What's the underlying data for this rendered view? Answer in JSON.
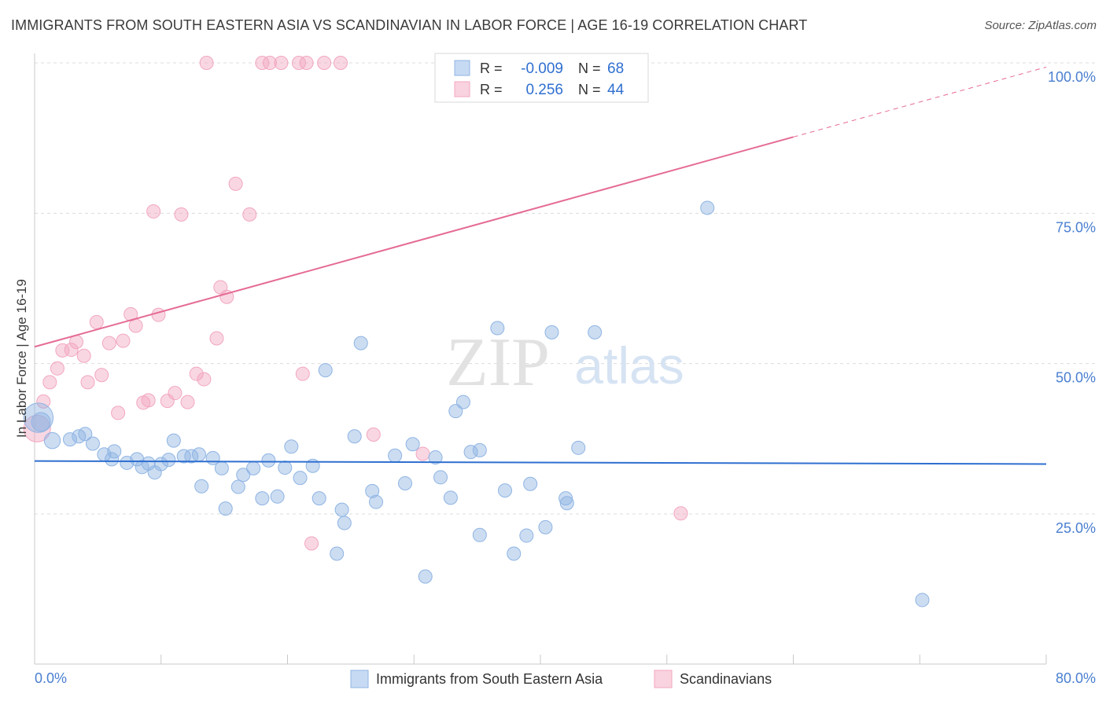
{
  "header": {
    "title": "IMMIGRANTS FROM SOUTH EASTERN ASIA VS SCANDINAVIAN IN LABOR FORCE | AGE 16-19 CORRELATION CHART",
    "source": "Source: ZipAtlas.com"
  },
  "watermark": {
    "zip": "ZIP",
    "atlas": "atlas"
  },
  "colors": {
    "blue": "#8fb4e3",
    "blue_line": "#2f6fd0",
    "pink": "#f2a7bf",
    "pink_line": "#e56b94",
    "axis_label": "#4a7fd0",
    "grid": "#dcdcdc"
  },
  "stats_box": {
    "rows": [
      {
        "r_label": "R =",
        "r_value": "-0.009",
        "n_label": "N =",
        "n_value": "68"
      },
      {
        "r_label": "R =",
        "r_value": "0.256",
        "n_label": "N =",
        "n_value": "44"
      }
    ]
  },
  "legend": {
    "items": [
      {
        "label": "Immigrants from South Eastern Asia"
      },
      {
        "label": "Scandinavians"
      }
    ]
  },
  "chart_data": {
    "type": "scatter",
    "title": "IMMIGRANTS FROM SOUTH EASTERN ASIA VS SCANDINAVIAN IN LABOR FORCE | AGE 16-19 CORRELATION CHART",
    "xlabel": "",
    "ylabel": "In Labor Force | Age 16-19",
    "xlim": [
      0,
      80
    ],
    "ylim": [
      3,
      105
    ],
    "x_tick_labels": [
      "0.0%",
      "80.0%"
    ],
    "y_ticks": [
      25,
      50,
      75,
      100
    ],
    "y_tick_labels": [
      "25.0%",
      "50.0%",
      "75.0%",
      "100.0%"
    ],
    "series": [
      {
        "name": "Immigrants from South Eastern Asia",
        "color": "#8fb4e3",
        "trend": {
          "x": [
            0,
            80
          ],
          "y": [
            33.8,
            33.3
          ],
          "dashed_after": null
        },
        "points": [
          [
            0.3,
            41.0,
            2.2
          ],
          [
            0.5,
            40.3,
            1.4
          ],
          [
            1.4,
            37.2,
            1.2
          ],
          [
            3.5,
            37.9,
            1.0
          ],
          [
            4.0,
            38.3,
            1.0
          ],
          [
            2.8,
            37.4,
            1.0
          ],
          [
            4.6,
            36.7,
            1.0
          ],
          [
            5.5,
            34.9,
            1.0
          ],
          [
            6.3,
            35.4,
            1.0
          ],
          [
            6.1,
            34.1,
            1.0
          ],
          [
            7.3,
            33.5,
            1.0
          ],
          [
            8.1,
            34.1,
            1.0
          ],
          [
            9.0,
            33.4,
            1.0
          ],
          [
            8.5,
            32.8,
            1.0
          ],
          [
            10.0,
            33.3,
            1.0
          ],
          [
            10.6,
            34.0,
            1.0
          ],
          [
            11.0,
            37.2,
            1.0
          ],
          [
            9.5,
            31.9,
            1.0
          ],
          [
            11.8,
            34.6,
            1.0
          ],
          [
            12.4,
            34.6,
            1.0
          ],
          [
            13.0,
            34.9,
            1.0
          ],
          [
            14.1,
            34.3,
            1.0
          ],
          [
            13.2,
            29.6,
            1.0
          ],
          [
            14.8,
            32.6,
            1.0
          ],
          [
            16.1,
            29.5,
            1.0
          ],
          [
            15.1,
            25.9,
            1.0
          ],
          [
            16.5,
            31.5,
            1.0
          ],
          [
            17.3,
            32.6,
            1.0
          ],
          [
            18.0,
            27.6,
            1.0
          ],
          [
            18.5,
            33.9,
            1.0
          ],
          [
            19.8,
            32.7,
            1.0
          ],
          [
            19.2,
            27.9,
            1.0
          ],
          [
            20.3,
            36.2,
            1.0
          ],
          [
            21.0,
            31.0,
            1.0
          ],
          [
            22.5,
            27.6,
            1.0
          ],
          [
            22.0,
            33.0,
            1.0
          ],
          [
            24.3,
            25.7,
            1.0
          ],
          [
            24.5,
            23.5,
            1.0
          ],
          [
            23.9,
            18.4,
            1.0
          ],
          [
            25.3,
            37.9,
            1.0
          ],
          [
            25.8,
            53.4,
            1.0
          ],
          [
            23.0,
            48.9,
            1.0
          ],
          [
            26.7,
            28.8,
            1.0
          ],
          [
            27.0,
            27.0,
            1.0
          ],
          [
            28.5,
            34.7,
            1.0
          ],
          [
            29.3,
            30.1,
            1.0
          ],
          [
            29.9,
            36.6,
            1.0
          ],
          [
            30.9,
            14.6,
            1.0
          ],
          [
            31.7,
            34.4,
            1.0
          ],
          [
            32.1,
            31.1,
            1.0
          ],
          [
            32.9,
            27.7,
            1.0
          ],
          [
            33.3,
            42.1,
            1.0
          ],
          [
            33.9,
            43.6,
            1.0
          ],
          [
            34.5,
            35.3,
            1.0
          ],
          [
            35.2,
            35.6,
            1.0
          ],
          [
            35.2,
            21.5,
            1.0
          ],
          [
            36.6,
            55.9,
            1.0
          ],
          [
            37.2,
            28.9,
            1.0
          ],
          [
            37.9,
            18.4,
            1.0
          ],
          [
            38.9,
            21.4,
            1.0
          ],
          [
            39.2,
            30.0,
            1.0
          ],
          [
            40.4,
            22.8,
            1.0
          ],
          [
            40.9,
            55.2,
            1.0
          ],
          [
            42.0,
            27.6,
            1.0
          ],
          [
            42.1,
            26.8,
            1.0
          ],
          [
            43.0,
            36.0,
            1.0
          ],
          [
            44.3,
            55.2,
            1.0
          ],
          [
            53.2,
            75.9,
            1.0
          ],
          [
            70.2,
            10.7,
            1.0
          ]
        ]
      },
      {
        "name": "Scandinavians",
        "color": "#f2a7bf",
        "trend": {
          "x": [
            0,
            80
          ],
          "y": [
            52.8,
            99.3
          ],
          "dashed_after": 60.0
        },
        "points": [
          [
            0.2,
            39.2,
            2.0
          ],
          [
            0.7,
            43.7,
            1.0
          ],
          [
            1.2,
            46.9,
            1.0
          ],
          [
            1.8,
            49.2,
            1.0
          ],
          [
            2.2,
            52.2,
            1.0
          ],
          [
            2.9,
            52.3,
            1.0
          ],
          [
            3.3,
            53.6,
            1.0
          ],
          [
            3.9,
            51.3,
            1.0
          ],
          [
            4.2,
            46.9,
            1.0
          ],
          [
            4.9,
            56.9,
            1.0
          ],
          [
            5.3,
            48.1,
            1.0
          ],
          [
            5.9,
            53.4,
            1.0
          ],
          [
            6.6,
            41.8,
            1.0
          ],
          [
            7.0,
            53.8,
            1.0
          ],
          [
            7.6,
            58.2,
            1.0
          ],
          [
            8.0,
            56.3,
            1.0
          ],
          [
            8.6,
            43.5,
            1.0
          ],
          [
            9.0,
            43.9,
            1.0
          ],
          [
            9.4,
            75.3,
            1.0
          ],
          [
            9.8,
            58.1,
            1.0
          ],
          [
            10.5,
            43.8,
            1.0
          ],
          [
            11.1,
            45.1,
            1.0
          ],
          [
            11.6,
            74.8,
            1.0
          ],
          [
            12.1,
            43.6,
            1.0
          ],
          [
            12.8,
            48.3,
            1.0
          ],
          [
            13.4,
            47.4,
            1.0
          ],
          [
            13.6,
            100.0,
            1.0
          ],
          [
            14.4,
            54.2,
            1.0
          ],
          [
            14.7,
            62.7,
            1.0
          ],
          [
            15.2,
            61.1,
            1.0
          ],
          [
            15.9,
            79.9,
            1.0
          ],
          [
            17.0,
            74.8,
            1.0
          ],
          [
            18.0,
            100.0,
            1.0
          ],
          [
            18.6,
            100.0,
            1.0
          ],
          [
            19.5,
            100.0,
            1.0
          ],
          [
            20.9,
            100.0,
            1.0
          ],
          [
            21.2,
            48.3,
            1.0
          ],
          [
            21.5,
            100.0,
            1.0
          ],
          [
            22.9,
            100.0,
            1.0
          ],
          [
            24.2,
            100.0,
            1.0
          ],
          [
            21.9,
            20.1,
            1.0
          ],
          [
            26.8,
            38.2,
            1.0
          ],
          [
            30.7,
            35.0,
            1.0
          ],
          [
            51.1,
            25.1,
            1.0
          ]
        ]
      }
    ]
  }
}
